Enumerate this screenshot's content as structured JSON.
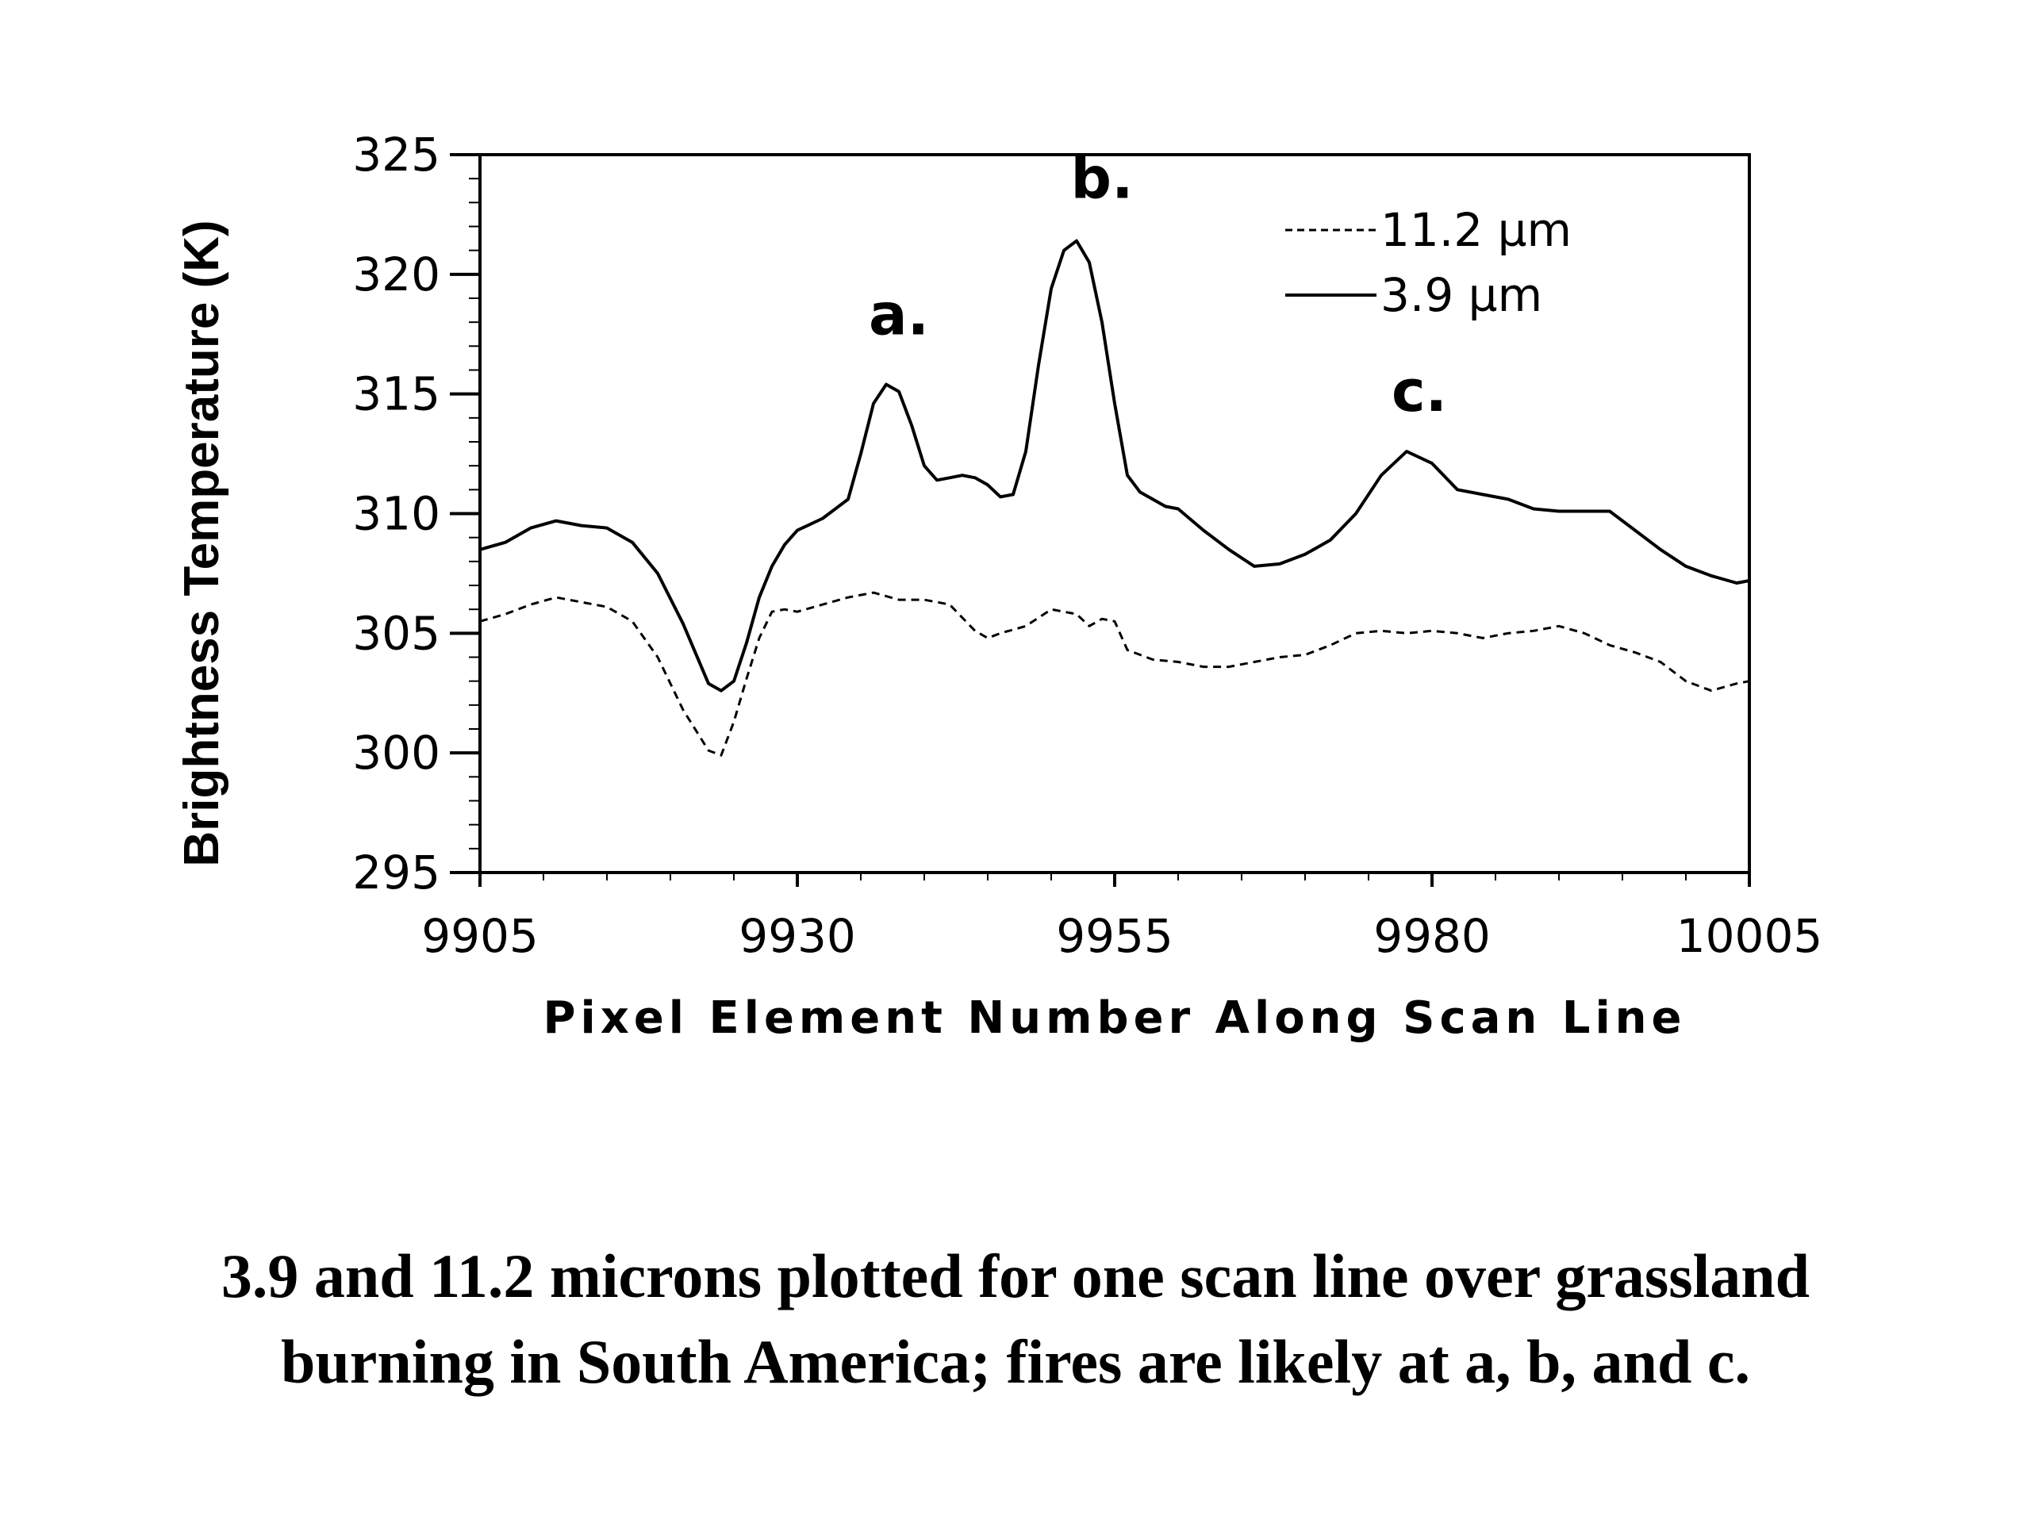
{
  "chart_data": {
    "type": "line",
    "xlabel": "Pixel Element Number Along Scan Line",
    "ylabel": "Brightness Temperature (K)",
    "xlim": [
      9905,
      10005
    ],
    "ylim": [
      295,
      325
    ],
    "x_ticks": [
      "9905",
      "9930",
      "9955",
      "9980",
      "10005"
    ],
    "y_ticks": [
      "325",
      "320",
      "315",
      "310",
      "305",
      "300",
      "295"
    ],
    "legend_position": "top-right",
    "series": [
      {
        "name": "11.2 µm",
        "style": "dashed",
        "color": "#000000",
        "x": [
          9905,
          9907,
          9909,
          9911,
          9913,
          9915,
          9917,
          9919,
          9921,
          9923,
          9924,
          9925,
          9926,
          9927,
          9928,
          9929,
          9930,
          9932,
          9934,
          9936,
          9938,
          9940,
          9942,
          9944,
          9945,
          9946,
          9948,
          9950,
          9952,
          9953,
          9954,
          9955,
          9956,
          9958,
          9960,
          9962,
          9964,
          9966,
          9968,
          9970,
          9972,
          9974,
          9976,
          9978,
          9980,
          9982,
          9984,
          9986,
          9988,
          9990,
          9992,
          9994,
          9996,
          9998,
          10000,
          10002,
          10004,
          10005
        ],
        "y": [
          305.5,
          305.8,
          306.2,
          306.5,
          306.3,
          306.1,
          305.5,
          304.0,
          301.8,
          300.1,
          299.9,
          301.3,
          303.1,
          304.8,
          305.9,
          306.0,
          305.9,
          306.2,
          306.5,
          306.7,
          306.4,
          306.4,
          306.2,
          305.1,
          304.8,
          305.0,
          305.3,
          306.0,
          305.8,
          305.3,
          305.6,
          305.5,
          304.3,
          303.9,
          303.8,
          303.6,
          303.6,
          303.8,
          304.0,
          304.1,
          304.5,
          305.0,
          305.1,
          305.0,
          305.1,
          305.0,
          304.8,
          305.0,
          305.1,
          305.3,
          305.0,
          304.5,
          304.2,
          303.8,
          303.0,
          302.6,
          302.9,
          303.0
        ]
      },
      {
        "name": "3.9 µm",
        "style": "solid",
        "color": "#000000",
        "x": [
          9905,
          9907,
          9909,
          9911,
          9913,
          9915,
          9917,
          9919,
          9921,
          9923,
          9924,
          9925,
          9926,
          9927,
          9928,
          9929,
          9930,
          9932,
          9934,
          9935,
          9936,
          9937,
          9938,
          9939,
          9940,
          9941,
          9942,
          9943,
          9944,
          9945,
          9946,
          9947,
          9948,
          9949,
          9950,
          9951,
          9952,
          9953,
          9954,
          9955,
          9956,
          9957,
          9958,
          9959,
          9960,
          9962,
          9964,
          9966,
          9968,
          9970,
          9972,
          9974,
          9976,
          9978,
          9980,
          9982,
          9984,
          9986,
          9988,
          9990,
          9992,
          9994,
          9996,
          9998,
          10000,
          10002,
          10004,
          10005
        ],
        "y": [
          308.5,
          308.8,
          309.4,
          309.7,
          309.5,
          309.4,
          308.8,
          307.5,
          305.4,
          302.9,
          302.6,
          303.0,
          304.6,
          306.5,
          307.8,
          308.7,
          309.3,
          309.8,
          310.6,
          312.5,
          314.6,
          315.4,
          315.1,
          313.7,
          312.0,
          311.4,
          311.5,
          311.6,
          311.5,
          311.2,
          310.7,
          310.8,
          312.6,
          316.2,
          319.4,
          321.0,
          321.4,
          320.5,
          318.0,
          314.6,
          311.6,
          310.9,
          310.6,
          310.3,
          310.2,
          309.3,
          308.5,
          307.8,
          307.9,
          308.3,
          308.9,
          310.0,
          311.6,
          312.6,
          312.1,
          311.0,
          310.8,
          310.6,
          310.2,
          310.1,
          310.1,
          310.1,
          309.3,
          308.5,
          307.8,
          307.4,
          307.1,
          307.2
        ]
      }
    ],
    "annotations": [
      {
        "text": "a.",
        "x": 9938,
        "y": 317.5
      },
      {
        "text": "b.",
        "x": 9954,
        "y": 323.2
      },
      {
        "text": "c.",
        "x": 9979,
        "y": 314.3
      }
    ]
  },
  "caption": {
    "line1": "3.9 and 11.2 microns plotted for one scan line over grassland",
    "line2": "burning in South America; fires are likely at a, b, and c."
  }
}
